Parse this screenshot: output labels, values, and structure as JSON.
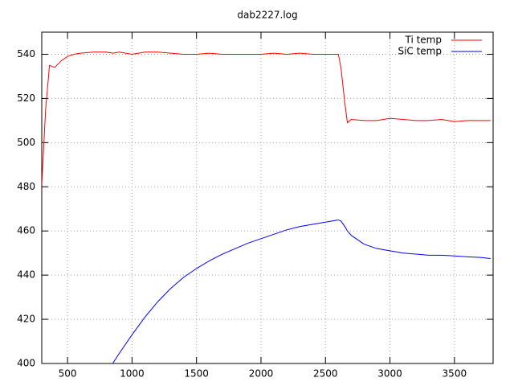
{
  "chart_data": {
    "type": "line",
    "title": "dab2227.log",
    "x": [
      300,
      330,
      360,
      400,
      450,
      500,
      550,
      600,
      700,
      800,
      850,
      900,
      1000,
      1100,
      1200,
      1300,
      1400,
      1500,
      1600,
      1700,
      1800,
      1900,
      2000,
      2100,
      2200,
      2300,
      2400,
      2500,
      2550,
      2600,
      2620,
      2650,
      2670,
      2700,
      2800,
      2900,
      3000,
      3100,
      3200,
      3300,
      3400,
      3500,
      3600,
      3700,
      3780
    ],
    "series": [
      {
        "name": "Ti temp",
        "color": "#ff0000",
        "values": [
          481,
          515,
          535,
          534,
          537,
          539,
          540,
          540.5,
          541,
          541,
          540.5,
          541,
          540,
          541,
          541,
          540.5,
          540,
          540,
          540.5,
          540,
          540,
          540,
          540,
          540.5,
          540,
          540.5,
          540,
          540,
          540,
          540,
          534,
          518,
          509,
          510.5,
          510,
          510,
          511,
          510.5,
          510,
          510,
          510.5,
          509.5,
          510,
          510,
          510
        ]
      },
      {
        "name": "SiC temp",
        "color": "#0000ff",
        "values": [
          null,
          null,
          null,
          null,
          null,
          null,
          null,
          null,
          null,
          null,
          400,
          404.5,
          413,
          421,
          428,
          434,
          439,
          443,
          446.5,
          449.5,
          452,
          454.5,
          456.5,
          458.5,
          460.5,
          462,
          463,
          464,
          464.5,
          465,
          464.5,
          462,
          460,
          458,
          454,
          452,
          451,
          450,
          449.5,
          449,
          449,
          448.7,
          448.3,
          448,
          447.5
        ]
      }
    ],
    "xlim": [
      300,
      3800
    ],
    "ylim": [
      400,
      550
    ],
    "xticks": [
      500,
      1000,
      1500,
      2000,
      2500,
      3000,
      3500
    ],
    "yticks": [
      400,
      420,
      440,
      460,
      480,
      500,
      520,
      540
    ],
    "grid": true,
    "legend": "top-right"
  }
}
